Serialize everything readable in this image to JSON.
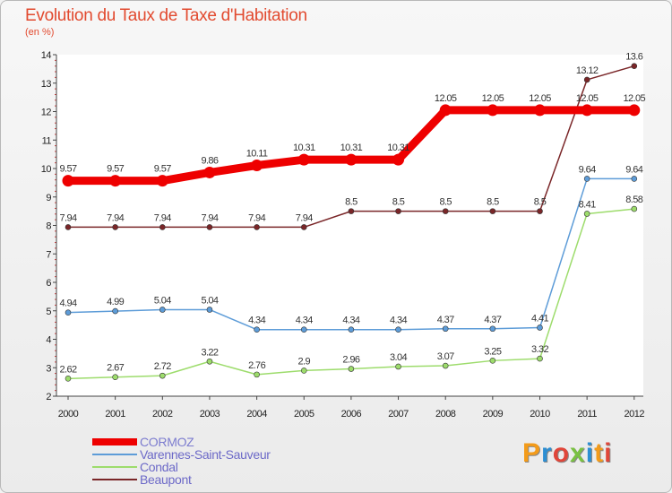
{
  "chart_data": {
    "type": "line",
    "title": "Evolution du Taux de Taxe d'Habitation",
    "ylabel": "(en %)",
    "xlabel": "",
    "ylim": [
      2,
      14
    ],
    "yticks": [
      "2",
      "3",
      "4",
      "5",
      "6",
      "7",
      "8",
      "9",
      "10",
      "11",
      "12",
      "13",
      "14"
    ],
    "categories": [
      "2000",
      "2001",
      "2002",
      "2003",
      "2004",
      "2005",
      "2006",
      "2007",
      "2008",
      "2009",
      "2010",
      "2011",
      "2012"
    ],
    "series": [
      {
        "name": "CORMOZ",
        "color": "#ee0000",
        "text_color": "#7c7ccf",
        "values": [
          9.57,
          9.57,
          9.57,
          9.86,
          10.11,
          10.31,
          10.31,
          10.31,
          12.05,
          12.05,
          12.05,
          12.05,
          12.05
        ],
        "labels": [
          "9.57",
          "9.57",
          "9.57",
          "9.86",
          "10.11",
          "10.31",
          "10.31",
          "10.31",
          "12.05",
          "12.05",
          "12.05",
          "12.05",
          "12.05"
        ]
      },
      {
        "name": "Varennes-Saint-Sauveur",
        "color": "#5d9cd8",
        "text_color": "#6d6ac8",
        "values": [
          4.94,
          4.99,
          5.04,
          5.04,
          4.34,
          4.34,
          4.34,
          4.34,
          4.37,
          4.37,
          4.41,
          9.64,
          9.64
        ],
        "labels": [
          "4.94",
          "4.99",
          "5.04",
          "5.04",
          "4.34",
          "4.34",
          "4.34",
          "4.34",
          "4.37",
          "4.37",
          "4.41",
          "9.64",
          "9.64"
        ]
      },
      {
        "name": "Condal",
        "color": "#9ddc6c",
        "text_color": "#6d6ac8",
        "values": [
          2.62,
          2.67,
          2.72,
          3.22,
          2.76,
          2.9,
          2.96,
          3.04,
          3.07,
          3.25,
          3.32,
          8.41,
          8.58
        ],
        "labels": [
          "2.62",
          "2.67",
          "2.72",
          "3.22",
          "2.76",
          "2.9",
          "2.96",
          "3.04",
          "3.07",
          "3.25",
          "3.32",
          "8.41",
          "8.58"
        ]
      },
      {
        "name": "Beaupont",
        "color": "#7a2628",
        "text_color": "#6d6ac8",
        "values": [
          7.94,
          7.94,
          7.94,
          7.94,
          7.94,
          7.94,
          8.5,
          8.5,
          8.5,
          8.5,
          8.5,
          13.12,
          13.6
        ],
        "labels": [
          "7.94",
          "7.94",
          "7.94",
          "7.94",
          "7.94",
          "7.94",
          "8.5",
          "8.5",
          "8.5",
          "8.5",
          "8.5",
          "13.12",
          "13.6"
        ]
      }
    ]
  },
  "logo": {
    "text": "Proxiti",
    "colors": [
      "#f39b1a",
      "#2d8fd3",
      "#e0463a",
      "#7ac143",
      "#2d8fd3",
      "#f39b1a",
      "#e0463a"
    ]
  }
}
